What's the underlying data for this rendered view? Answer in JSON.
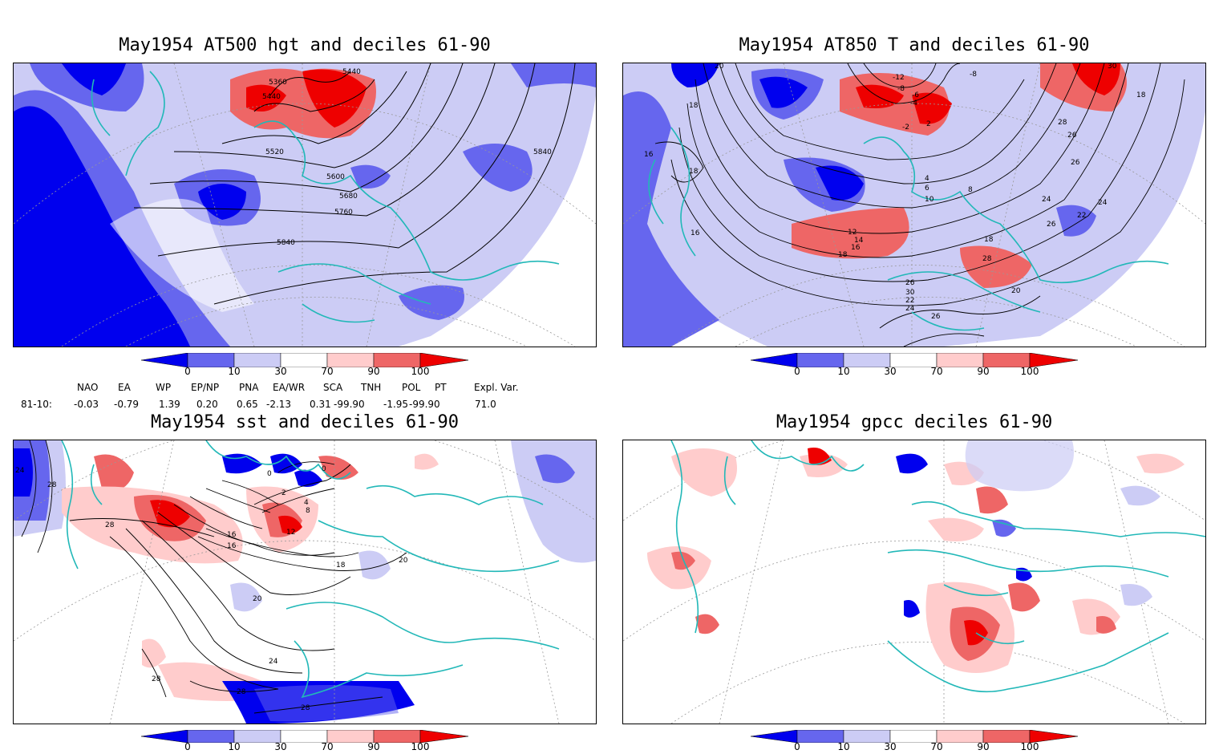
{
  "panels": [
    {
      "title": "May1954 AT500 hgt and deciles 61-90",
      "contour_labels": [
        "5360",
        "5440",
        "5440",
        "5520",
        "5600",
        "5680",
        "5760",
        "5840",
        "5840"
      ]
    },
    {
      "title": "May1954 AT850 T and deciles 61-90",
      "contour_labels": [
        "20",
        "18",
        "16",
        "18",
        "16",
        "-12",
        "-8",
        "-6",
        "-4",
        "-8",
        "-2",
        "2",
        "4",
        "6",
        "8",
        "10",
        "12",
        "14",
        "16",
        "18",
        "24",
        "26",
        "28",
        "30",
        "26",
        "24",
        "22",
        "20",
        "18",
        "26",
        "28",
        "26",
        "30",
        "22",
        "24",
        "26",
        "18"
      ]
    },
    {
      "title": "May1954 sst and deciles 61-90",
      "contour_labels": [
        "24",
        "28",
        "28",
        "0",
        "2",
        "4",
        "0",
        "8",
        "12",
        "16",
        "16",
        "20",
        "18",
        "20",
        "24",
        "28",
        "28",
        "28"
      ]
    },
    {
      "title": "May1954 gpcc deciles 61-90",
      "contour_labels": []
    }
  ],
  "colorbar": {
    "labels": [
      "0",
      "10",
      "30",
      "70",
      "90",
      "100"
    ],
    "colors": [
      "#0000ee",
      "#6666ee",
      "#ccccf5",
      "#ffffff",
      "#ffcccc",
      "#ee6666",
      "#ee0000"
    ]
  },
  "indices": {
    "header": [
      "NAO",
      "EA",
      "WP",
      "EP/NP",
      "PNA",
      "EA/WR",
      "SCA",
      "TNH",
      "POL",
      "PT",
      "Expl. Var."
    ],
    "row_label": "81-10:",
    "values": [
      "-0.03",
      "-0.79",
      "1.39",
      "0.20",
      "0.65",
      "-2.13",
      "0.31",
      "-99.90",
      "-1.95",
      "-99.90",
      "71.0"
    ]
  },
  "colors": {
    "coast": "#22b8b8",
    "grid": "#999999"
  }
}
